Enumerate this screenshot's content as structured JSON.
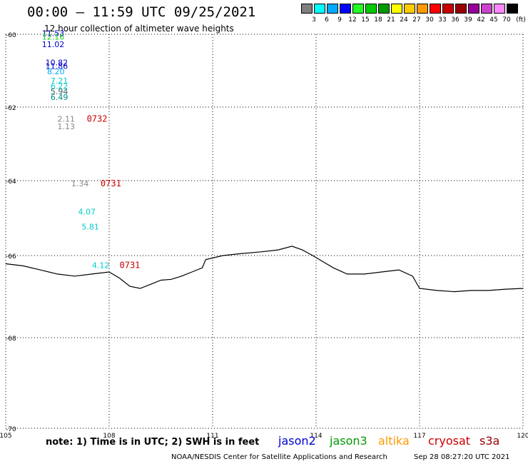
{
  "header": {
    "title": "00:00 – 11:59 UTC 09/25/2021",
    "subtitle": "12 hour collection of altimeter wave heights"
  },
  "colorbar": {
    "colors": [
      "#7f7f7f",
      "#00ffff",
      "#00aaff",
      "#0000ff",
      "#22ff22",
      "#00cc00",
      "#009900",
      "#ffff00",
      "#ffcc00",
      "#ff9900",
      "#ff0000",
      "#cc0000",
      "#990000",
      "#990099",
      "#cc44cc",
      "#ff88ff",
      "#000000"
    ],
    "labels": [
      "3",
      "6",
      "9",
      "12",
      "15",
      "18",
      "21",
      "24",
      "27",
      "30",
      "33",
      "36",
      "39",
      "42",
      "45",
      "70"
    ],
    "unit": "(ft)"
  },
  "axes": {
    "x_ticks": [
      "105",
      "108",
      "111",
      "114",
      "117",
      "120"
    ],
    "y_ticks": [
      "-60",
      "-62",
      "-64",
      "-66",
      "-68",
      "-70"
    ]
  },
  "observations": [
    {
      "text": "11.53",
      "color": "#0000cc",
      "lon": 106.05,
      "lat": -60.05
    },
    {
      "text": "12.16",
      "color": "#22cc22",
      "lon": 106.05,
      "lat": -60.15
    },
    {
      "text": "11.02",
      "color": "#0000cc",
      "lon": 106.05,
      "lat": -60.35
    },
    {
      "text": "10.82",
      "color": "#0000cc",
      "lon": 106.15,
      "lat": -60.85
    },
    {
      "text": "11.86",
      "color": "#0000cc",
      "lon": 106.15,
      "lat": -60.95
    },
    {
      "text": "8.20",
      "color": "#00aaff",
      "lon": 106.2,
      "lat": -61.1
    },
    {
      "text": "7.21",
      "color": "#00cccc",
      "lon": 106.3,
      "lat": -61.35
    },
    {
      "text": "6.22",
      "color": "#00cccc",
      "lon": 106.3,
      "lat": -61.5
    },
    {
      "text": "5.94",
      "color": "#336666",
      "lon": 106.3,
      "lat": -61.65
    },
    {
      "text": "6.49",
      "color": "#008888",
      "lon": 106.3,
      "lat": -61.8
    },
    {
      "text": "2.11",
      "color": "#888888",
      "lon": 106.5,
      "lat": -62.4
    },
    {
      "text": "1.13",
      "color": "#888888",
      "lon": 106.5,
      "lat": -62.6
    },
    {
      "text": "1.34",
      "color": "#888888",
      "lon": 106.9,
      "lat": -64.15
    },
    {
      "text": "4.07",
      "color": "#00cccc",
      "lon": 107.1,
      "lat": -64.9
    },
    {
      "text": "5.81",
      "color": "#00cccc",
      "lon": 107.2,
      "lat": -65.3
    },
    {
      "text": "4.12",
      "color": "#00cccc",
      "lon": 107.5,
      "lat": -66.3
    }
  ],
  "passes": [
    {
      "text": "0732",
      "color": "#cc0000",
      "lon": 107.35,
      "lat": -62.4
    },
    {
      "text": "0731",
      "color": "#cc0000",
      "lon": 107.75,
      "lat": -64.15
    },
    {
      "text": "0731",
      "color": "#cc0000",
      "lon": 108.3,
      "lat": -66.3
    }
  ],
  "coastline": [
    [
      105,
      -66.2
    ],
    [
      105.5,
      -66.25
    ],
    [
      106,
      -66.35
    ],
    [
      106.5,
      -66.45
    ],
    [
      107,
      -66.5
    ],
    [
      107.5,
      -66.45
    ],
    [
      108,
      -66.4
    ],
    [
      108.3,
      -66.55
    ],
    [
      108.6,
      -66.75
    ],
    [
      108.9,
      -66.8
    ],
    [
      109.2,
      -66.7
    ],
    [
      109.5,
      -66.6
    ],
    [
      109.8,
      -66.58
    ],
    [
      110.1,
      -66.5
    ],
    [
      110.4,
      -66.4
    ],
    [
      110.7,
      -66.3
    ],
    [
      110.8,
      -66.1
    ],
    [
      111.3,
      -66.0
    ],
    [
      111.8,
      -65.95
    ],
    [
      112.4,
      -65.9
    ],
    [
      112.9,
      -65.85
    ],
    [
      113.3,
      -65.75
    ],
    [
      113.6,
      -65.85
    ],
    [
      113.9,
      -66.0
    ],
    [
      114.2,
      -66.15
    ],
    [
      114.5,
      -66.3
    ],
    [
      114.9,
      -66.45
    ],
    [
      115.4,
      -66.45
    ],
    [
      115.9,
      -66.4
    ],
    [
      116.4,
      -66.35
    ],
    [
      116.8,
      -66.5
    ],
    [
      117.0,
      -66.8
    ],
    [
      117.5,
      -66.85
    ],
    [
      118.0,
      -66.88
    ],
    [
      118.5,
      -66.85
    ],
    [
      119.0,
      -66.85
    ],
    [
      119.5,
      -66.82
    ],
    [
      120,
      -66.8
    ]
  ],
  "legend": {
    "note": "note:  1) Time is in UTC;  2) SWH is in feet",
    "satellites": [
      {
        "name": "jason2",
        "color": "#0000cc"
      },
      {
        "name": "jason3",
        "color": "#009900"
      },
      {
        "name": "altika",
        "color": "#ff9900"
      },
      {
        "name": "cryosat",
        "color": "#cc0000"
      },
      {
        "name": "s3a",
        "color": "#990000"
      }
    ]
  },
  "footer": {
    "credit": "NOAA/NESDIS Center for Satellite Applications and Research",
    "timestamp": "Sep 28 08:27:20 UTC 2021"
  }
}
